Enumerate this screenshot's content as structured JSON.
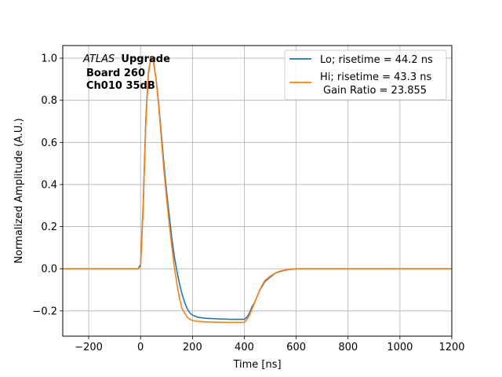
{
  "chart_data": {
    "type": "line",
    "xlabel": "Time [ns]",
    "ylabel": "Normalized Amplitude (A.U.)",
    "xlim": [
      -300,
      1200
    ],
    "ylim": [
      -0.32,
      1.06
    ],
    "xticks": [
      -200,
      0,
      200,
      400,
      600,
      800,
      1000,
      1200
    ],
    "xtick_labels": [
      "−200",
      "0",
      "200",
      "400",
      "600",
      "800",
      "1000",
      "1200"
    ],
    "yticks": [
      -0.2,
      0.0,
      0.2,
      0.4,
      0.6,
      0.8,
      1.0
    ],
    "ytick_labels": [
      "−0.2",
      "0.0",
      "0.2",
      "0.4",
      "0.6",
      "0.8",
      "1.0"
    ],
    "grid": true,
    "legend_position": "top-right",
    "annotation": {
      "atlas": "ATLAS",
      "upgrade": "Upgrade",
      "board": "Board 260",
      "channel": "Ch010 35dB"
    },
    "series": [
      {
        "name": "Lo; risetime = 44.2 ns",
        "color": "#1f77b4",
        "x": [
          -300,
          -10,
          0,
          10,
          20,
          30,
          40,
          50,
          60,
          70,
          80,
          90,
          100,
          110,
          120,
          130,
          140,
          150,
          160,
          170,
          180,
          190,
          200,
          220,
          250,
          300,
          350,
          400,
          410,
          420,
          430,
          440,
          450,
          460,
          470,
          480,
          500,
          520,
          540,
          560,
          580,
          600,
          700,
          800,
          900,
          1000,
          1100,
          1200
        ],
        "y": [
          0.0,
          0.0,
          0.02,
          0.3,
          0.7,
          0.93,
          1.0,
          0.98,
          0.9,
          0.78,
          0.64,
          0.5,
          0.37,
          0.26,
          0.15,
          0.06,
          -0.01,
          -0.07,
          -0.12,
          -0.16,
          -0.19,
          -0.21,
          -0.22,
          -0.23,
          -0.235,
          -0.238,
          -0.24,
          -0.24,
          -0.23,
          -0.21,
          -0.18,
          -0.16,
          -0.13,
          -0.1,
          -0.08,
          -0.06,
          -0.04,
          -0.02,
          -0.012,
          -0.006,
          -0.003,
          0.0,
          0.0,
          0.0,
          0.0,
          0.0,
          0.0,
          0.0
        ]
      },
      {
        "name": "Hi; risetime = 43.3 ns",
        "subname": "Gain Ratio = 23.855",
        "color": "#ff7f0e",
        "x": [
          -300,
          -10,
          0,
          10,
          20,
          30,
          40,
          50,
          60,
          70,
          80,
          90,
          100,
          110,
          120,
          130,
          140,
          150,
          160,
          170,
          180,
          190,
          200,
          220,
          250,
          300,
          350,
          400,
          410,
          420,
          430,
          440,
          450,
          460,
          470,
          480,
          500,
          520,
          540,
          560,
          580,
          600,
          700,
          800,
          900,
          1000,
          1100,
          1200
        ],
        "y": [
          0.0,
          0.0,
          0.01,
          0.28,
          0.68,
          0.92,
          1.0,
          0.985,
          0.9,
          0.77,
          0.62,
          0.47,
          0.34,
          0.22,
          0.11,
          0.01,
          -0.07,
          -0.14,
          -0.19,
          -0.21,
          -0.23,
          -0.24,
          -0.245,
          -0.25,
          -0.252,
          -0.254,
          -0.255,
          -0.254,
          -0.24,
          -0.22,
          -0.19,
          -0.16,
          -0.13,
          -0.1,
          -0.075,
          -0.055,
          -0.035,
          -0.02,
          -0.01,
          -0.005,
          -0.002,
          0.0,
          0.0,
          0.0,
          0.0,
          0.0,
          0.0,
          0.0
        ]
      }
    ]
  }
}
